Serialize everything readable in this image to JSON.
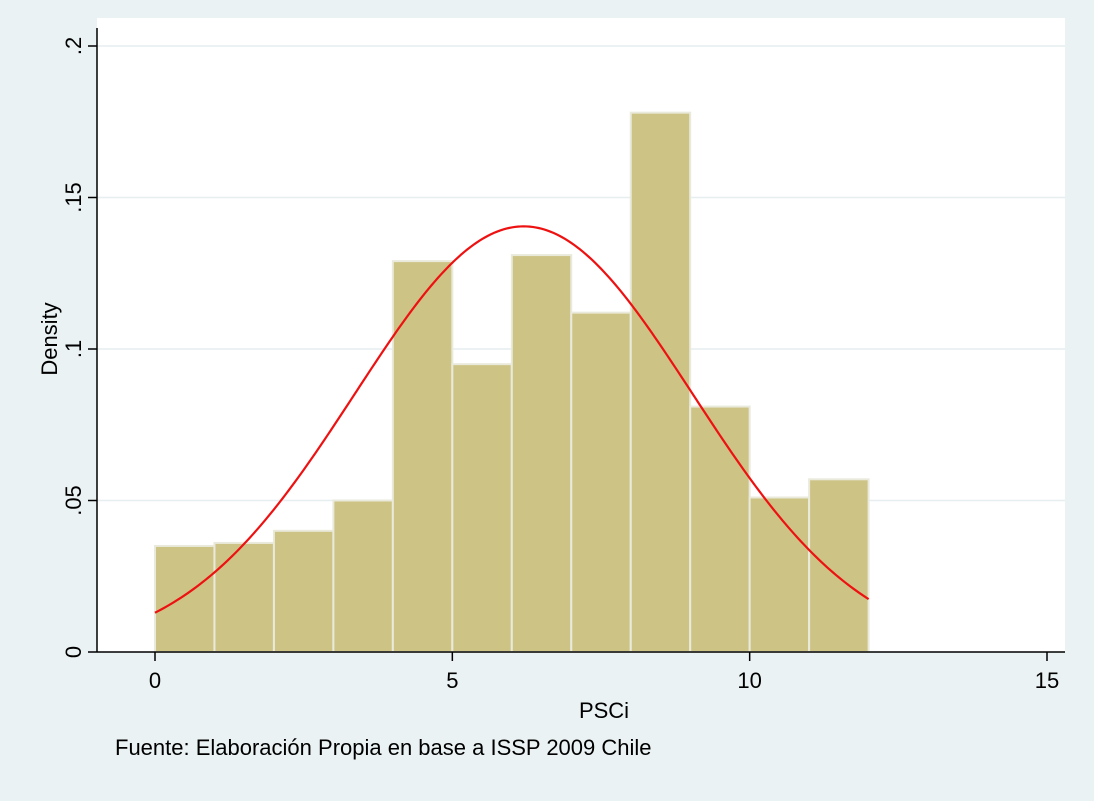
{
  "chart_data": {
    "type": "bar",
    "subtype": "histogram-with-normal-density",
    "title": "",
    "xlabel": "PSCi",
    "ylabel": "Density",
    "note": "Fuente: Elaboración Propia en base a ISSP 2009 Chile",
    "xlim": [
      -0.8,
      15.3
    ],
    "ylim": [
      0,
      0.2
    ],
    "x_ticks": [
      0,
      5,
      10,
      15
    ],
    "x_tick_labels": [
      "0",
      "5",
      "10",
      "15"
    ],
    "y_ticks": [
      0,
      0.05,
      0.1,
      0.15,
      0.2
    ],
    "y_tick_labels": [
      "0",
      ".05",
      ".1",
      ".15",
      ".2"
    ],
    "grid": true,
    "bins": [
      {
        "start": 0,
        "end": 1,
        "density": 0.035
      },
      {
        "start": 1,
        "end": 2,
        "density": 0.036
      },
      {
        "start": 2,
        "end": 3,
        "density": 0.04
      },
      {
        "start": 3,
        "end": 4,
        "density": 0.05
      },
      {
        "start": 4,
        "end": 5,
        "density": 0.129
      },
      {
        "start": 5,
        "end": 6,
        "density": 0.095
      },
      {
        "start": 6,
        "end": 7,
        "density": 0.131
      },
      {
        "start": 7,
        "end": 8,
        "density": 0.112
      },
      {
        "start": 8,
        "end": 9,
        "density": 0.178
      },
      {
        "start": 9,
        "end": 10,
        "density": 0.081
      },
      {
        "start": 10,
        "end": 11,
        "density": 0.051
      },
      {
        "start": 11,
        "end": 12,
        "density": 0.057
      }
    ],
    "normal_curve": {
      "mean": 6.2,
      "sd": 2.84,
      "x_range": [
        0,
        12
      ]
    },
    "colors": {
      "bar_fill": "#cdc385",
      "bar_edge": "#eaeadc",
      "curve": "#ee1111",
      "plot_bg": "#ffffff",
      "outer_bg": "#eaf2f3",
      "grid": "#e6eef0"
    }
  }
}
